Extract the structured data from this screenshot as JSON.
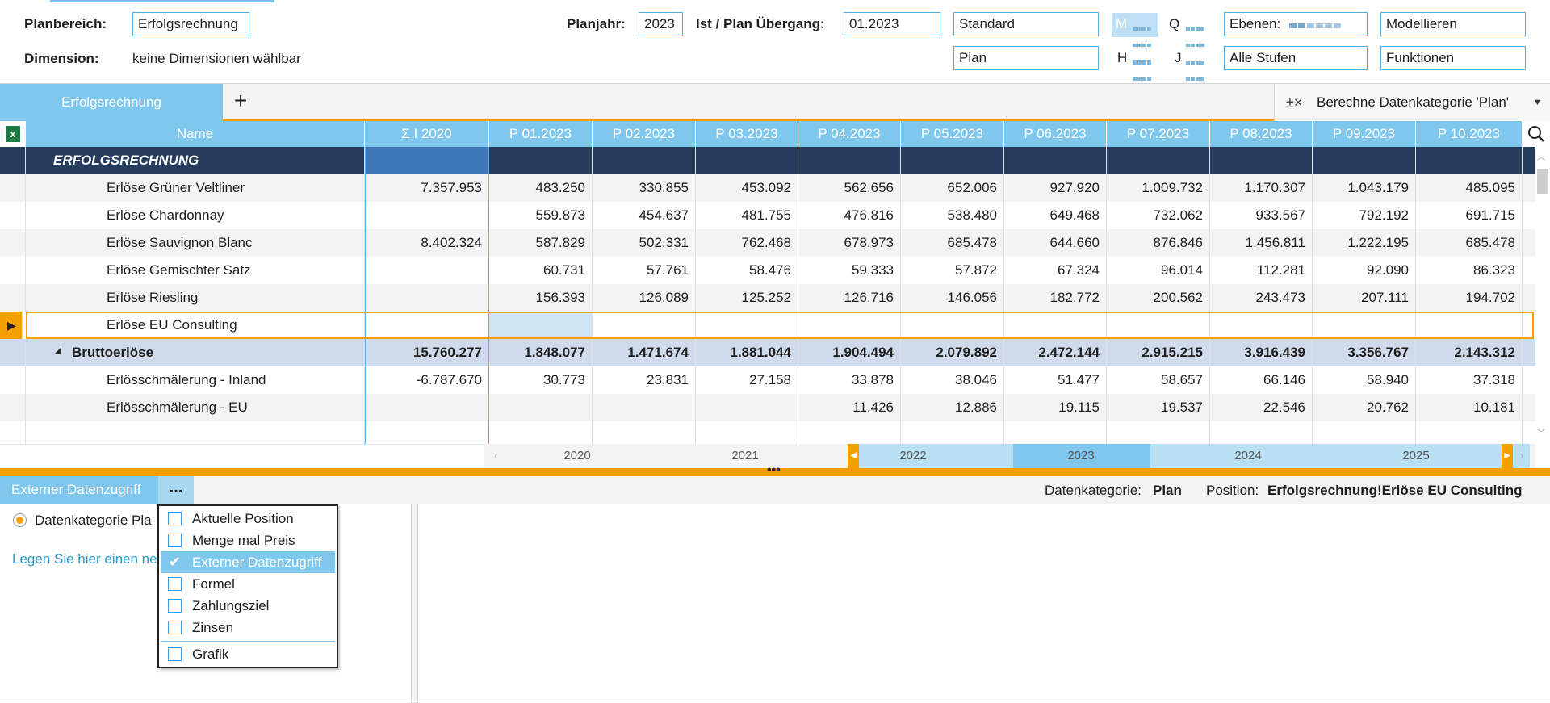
{
  "filters": {
    "planbereich_label": "Planbereich:",
    "planbereich_value": "Erfolgsrechnung",
    "dimension_label": "Dimension:",
    "dimension_value": "keine Dimensionen wählbar",
    "planjahr_label": "Planjahr:",
    "planjahr_value": "2023",
    "uebergang_label": "Ist / Plan Übergang:",
    "uebergang_value": "01.2023",
    "version_value": "Standard",
    "kategorie_value": "Plan",
    "period_m": "M",
    "period_q": "Q",
    "period_h": "H",
    "period_j": "J",
    "ebenen_label": "Ebenen:",
    "stufen_value": "Alle Stufen",
    "modellieren_value": "Modellieren",
    "funktionen_value": "Funktionen"
  },
  "tabs": {
    "active_label": "Erfolgsrechnung",
    "add_label": "+",
    "calc_label": "Berechne Datenkategorie 'Plan'",
    "calc_icon": "calc-formula-icon"
  },
  "grid": {
    "headers": [
      "Name",
      "Σ  I  2020",
      "P 01.2023",
      "P 02.2023",
      "P 03.2023",
      "P 04.2023",
      "P 05.2023",
      "P 06.2023",
      "P 07.2023",
      "P 08.2023",
      "P 09.2023",
      "P 10.2023"
    ],
    "rows": [
      {
        "name": "ERFOLGSRECHNUNG",
        "type": "section",
        "values": [
          "",
          "",
          "",
          "",
          "",
          "",
          "",
          "",
          "",
          "",
          ""
        ]
      },
      {
        "name": "Erlöse Grüner Veltliner",
        "type": "alt",
        "values": [
          "7.357.953",
          "483.250",
          "330.855",
          "453.092",
          "562.656",
          "652.006",
          "927.920",
          "1.009.732",
          "1.170.307",
          "1.043.179",
          "485.095"
        ]
      },
      {
        "name": "Erlöse Chardonnay",
        "type": "white",
        "values": [
          "",
          "559.873",
          "454.637",
          "481.755",
          "476.816",
          "538.480",
          "649.468",
          "732.062",
          "933.567",
          "792.192",
          "691.715"
        ]
      },
      {
        "name": "Erlöse Sauvignon Blanc",
        "type": "alt",
        "values": [
          "8.402.324",
          "587.829",
          "502.331",
          "762.468",
          "678.973",
          "685.478",
          "644.660",
          "876.846",
          "1.456.811",
          "1.222.195",
          "685.478"
        ]
      },
      {
        "name": "Erlöse Gemischter Satz",
        "type": "white",
        "values": [
          "",
          "60.731",
          "57.761",
          "58.476",
          "59.333",
          "57.872",
          "67.324",
          "96.014",
          "112.281",
          "92.090",
          "86.323"
        ]
      },
      {
        "name": "Erlöse Riesling",
        "type": "alt",
        "values": [
          "",
          "156.393",
          "126.089",
          "125.252",
          "126.716",
          "146.056",
          "182.772",
          "200.562",
          "243.473",
          "207.111",
          "194.702"
        ]
      },
      {
        "name": "Erlöse EU Consulting",
        "type": "selected",
        "values": [
          "",
          "",
          "",
          "",
          "",
          "",
          "",
          "",
          "",
          "",
          ""
        ]
      },
      {
        "name": "Bruttoerlöse",
        "type": "brutto",
        "values": [
          "15.760.277",
          "1.848.077",
          "1.471.674",
          "1.881.044",
          "1.904.494",
          "2.079.892",
          "2.472.144",
          "2.915.215",
          "3.916.439",
          "3.356.767",
          "2.143.312"
        ]
      },
      {
        "name": "Erlösschmälerung - Inland",
        "type": "white",
        "values": [
          "-6.787.670",
          "30.773",
          "23.831",
          "27.158",
          "33.878",
          "38.046",
          "51.477",
          "58.657",
          "66.146",
          "58.940",
          "37.318"
        ]
      },
      {
        "name": "Erlösschmälerung - EU",
        "type": "alt",
        "values": [
          "",
          "",
          "",
          "",
          "11.426",
          "12.886",
          "19.115",
          "19.537",
          "22.546",
          "20.762",
          "10.181"
        ]
      },
      {
        "name": "",
        "type": "white",
        "values": [
          "",
          "",
          "",
          "",
          "",
          "",
          "",
          "",
          "",
          "",
          ""
        ]
      }
    ]
  },
  "timeline": {
    "years": [
      "2020",
      "2021",
      "2022",
      "2023",
      "2024",
      "2025"
    ],
    "active_year": "2023"
  },
  "bottom": {
    "tab_label": "Externer Datenzugriff",
    "more_label": "...",
    "datenkategorie_label": "Datenkategorie:",
    "datenkategorie_value": "Plan",
    "position_label": "Position:",
    "position_value": "Erfolgsrechnung!Erlöse EU Consulting",
    "radio_label": "Datenkategorie Pla",
    "link_text": "Legen Sie hier einen ne"
  },
  "popup": {
    "options": [
      {
        "label": "Aktuelle Position",
        "checked": false
      },
      {
        "label": "Menge mal Preis",
        "checked": false
      },
      {
        "label": "Externer Datenzugriff",
        "checked": true
      },
      {
        "label": "Formel",
        "checked": false
      },
      {
        "label": "Zahlungsziel",
        "checked": false
      },
      {
        "label": "Zinsen",
        "checked": false
      },
      {
        "label": "Grafik",
        "checked": false
      }
    ]
  },
  "colors": {
    "header_blue": "#7fc7ec",
    "section_navy": "#253c5c",
    "accent_orange": "#f5a000",
    "selection_border": "#f5a000",
    "brutto_bg": "#cfdbeb"
  }
}
